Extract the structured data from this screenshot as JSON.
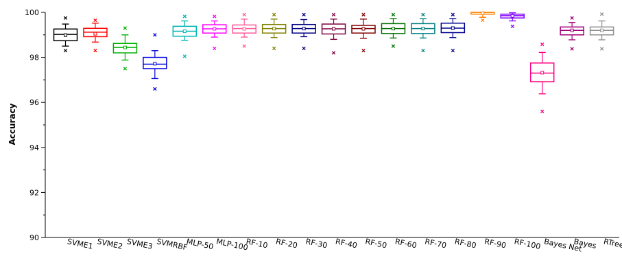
{
  "chart_data": {
    "type": "box",
    "title": "",
    "xlabel": "",
    "ylabel": "Accuracy",
    "ylim": [
      90,
      100
    ],
    "yticks": [
      90,
      92,
      94,
      96,
      98,
      100
    ],
    "grid": false,
    "categories": [
      "SVME1",
      "SVME2",
      "SVME3",
      "SVMRBF",
      "MLP-50",
      "MLP-100",
      "RF-10",
      "RF-20",
      "RF-30",
      "RF-40",
      "RF-50",
      "RF-60",
      "RF-70",
      "RF-80",
      "RF-90",
      "RF-100",
      "Bayes Net",
      "Bayes",
      "RTree"
    ],
    "boxes": [
      {
        "q1": 98.74,
        "median": 99.02,
        "q3": 99.26,
        "mean": 98.99,
        "whisker_low": 98.5,
        "whisker_high": 99.48,
        "outliers_low": [
          98.3
        ],
        "outliers_high": [
          99.75
        ],
        "color": "#000000"
      },
      {
        "q1": 98.92,
        "median": 99.12,
        "q3": 99.29,
        "mean": 99.05,
        "whisker_low": 98.68,
        "whisker_high": 99.52,
        "outliers_low": [
          98.3
        ],
        "outliers_high": [
          99.65
        ],
        "color": "#ff0000"
      },
      {
        "q1": 98.2,
        "median": 98.44,
        "q3": 98.62,
        "mean": 98.44,
        "whisker_low": 97.88,
        "whisker_high": 99.0,
        "outliers_low": [
          97.5
        ],
        "outliers_high": [
          99.3
        ],
        "color": "#00b000"
      },
      {
        "q1": 97.5,
        "median": 97.7,
        "q3": 98.0,
        "mean": 97.72,
        "whisker_low": 97.06,
        "whisker_high": 98.3,
        "outliers_low": [
          96.6
        ],
        "outliers_high": [
          99.0
        ],
        "color": "#0000dd"
      },
      {
        "q1": 98.94,
        "median": 99.16,
        "q3": 99.38,
        "mean": 99.16,
        "whisker_low": 98.76,
        "whisker_high": 99.62,
        "outliers_low": [
          98.05
        ],
        "outliers_high": [
          99.82
        ],
        "color": "#00b5b5"
      },
      {
        "q1": 99.08,
        "median": 99.27,
        "q3": 99.45,
        "mean": 99.27,
        "whisker_low": 98.9,
        "whisker_high": 99.62,
        "outliers_low": [
          98.4
        ],
        "outliers_high": [
          99.82
        ],
        "color": "#ff00ff"
      },
      {
        "q1": 99.08,
        "median": 99.28,
        "q3": 99.44,
        "mean": 99.27,
        "whisker_low": 98.9,
        "whisker_high": 99.7,
        "outliers_low": [
          98.5
        ],
        "outliers_high": [
          99.9
        ],
        "color": "#ff5a9a"
      },
      {
        "q1": 99.08,
        "median": 99.28,
        "q3": 99.46,
        "mean": 99.28,
        "whisker_low": 98.88,
        "whisker_high": 99.7,
        "outliers_low": [
          98.4
        ],
        "outliers_high": [
          99.9
        ],
        "color": "#808000"
      },
      {
        "q1": 99.08,
        "median": 99.28,
        "q3": 99.46,
        "mean": 99.28,
        "whisker_low": 98.92,
        "whisker_high": 99.68,
        "outliers_low": [
          98.4
        ],
        "outliers_high": [
          99.9
        ],
        "color": "#000080"
      },
      {
        "q1": 99.04,
        "median": 99.27,
        "q3": 99.48,
        "mean": 99.27,
        "whisker_low": 98.8,
        "whisker_high": 99.7,
        "outliers_low": [
          98.2
        ],
        "outliers_high": [
          99.9
        ],
        "color": "#800040"
      },
      {
        "q1": 99.08,
        "median": 99.28,
        "q3": 99.42,
        "mean": 99.27,
        "whisker_low": 98.85,
        "whisker_high": 99.7,
        "outliers_low": [
          98.3
        ],
        "outliers_high": [
          99.9
        ],
        "color": "#800000"
      },
      {
        "q1": 99.06,
        "median": 99.28,
        "q3": 99.5,
        "mean": 99.28,
        "whisker_low": 98.86,
        "whisker_high": 99.72,
        "outliers_low": [
          98.5
        ],
        "outliers_high": [
          99.9
        ],
        "color": "#007000"
      },
      {
        "q1": 99.06,
        "median": 99.28,
        "q3": 99.5,
        "mean": 99.28,
        "whisker_low": 98.86,
        "whisker_high": 99.72,
        "outliers_low": [
          98.3
        ],
        "outliers_high": [
          99.9
        ],
        "color": "#008080"
      },
      {
        "q1": 99.1,
        "median": 99.3,
        "q3": 99.52,
        "mean": 99.3,
        "whisker_low": 98.88,
        "whisker_high": 99.72,
        "outliers_low": [
          98.3
        ],
        "outliers_high": [
          99.9
        ],
        "color": "#000090"
      },
      {
        "q1": 99.92,
        "median": 100.0,
        "q3": 100.0,
        "mean": 99.96,
        "whisker_low": 99.78,
        "whisker_high": 100.0,
        "outliers_low": [
          99.65
        ],
        "outliers_high": [],
        "color": "#ff8000"
      },
      {
        "q1": 99.75,
        "median": 99.85,
        "q3": 99.92,
        "mean": 99.84,
        "whisker_low": 99.62,
        "whisker_high": 99.98,
        "outliers_low": [
          99.38
        ],
        "outliers_high": [],
        "color": "#8000ff"
      },
      {
        "q1": 96.92,
        "median": 97.3,
        "q3": 97.75,
        "mean": 97.32,
        "whisker_low": 96.38,
        "whisker_high": 98.22,
        "outliers_low": [
          95.6
        ],
        "outliers_high": [
          98.58
        ],
        "color": "#ff0080"
      },
      {
        "q1": 99.0,
        "median": 99.2,
        "q3": 99.35,
        "mean": 99.2,
        "whisker_low": 98.78,
        "whisker_high": 99.55,
        "outliers_low": [
          98.38
        ],
        "outliers_high": [
          99.75
        ],
        "color": "#a0007a"
      },
      {
        "q1": 99.0,
        "median": 99.2,
        "q3": 99.35,
        "mean": 99.2,
        "whisker_low": 98.78,
        "whisker_high": 99.62,
        "outliers_low": [
          98.38
        ],
        "outliers_high": [
          99.92
        ],
        "color": "#909090"
      }
    ]
  }
}
